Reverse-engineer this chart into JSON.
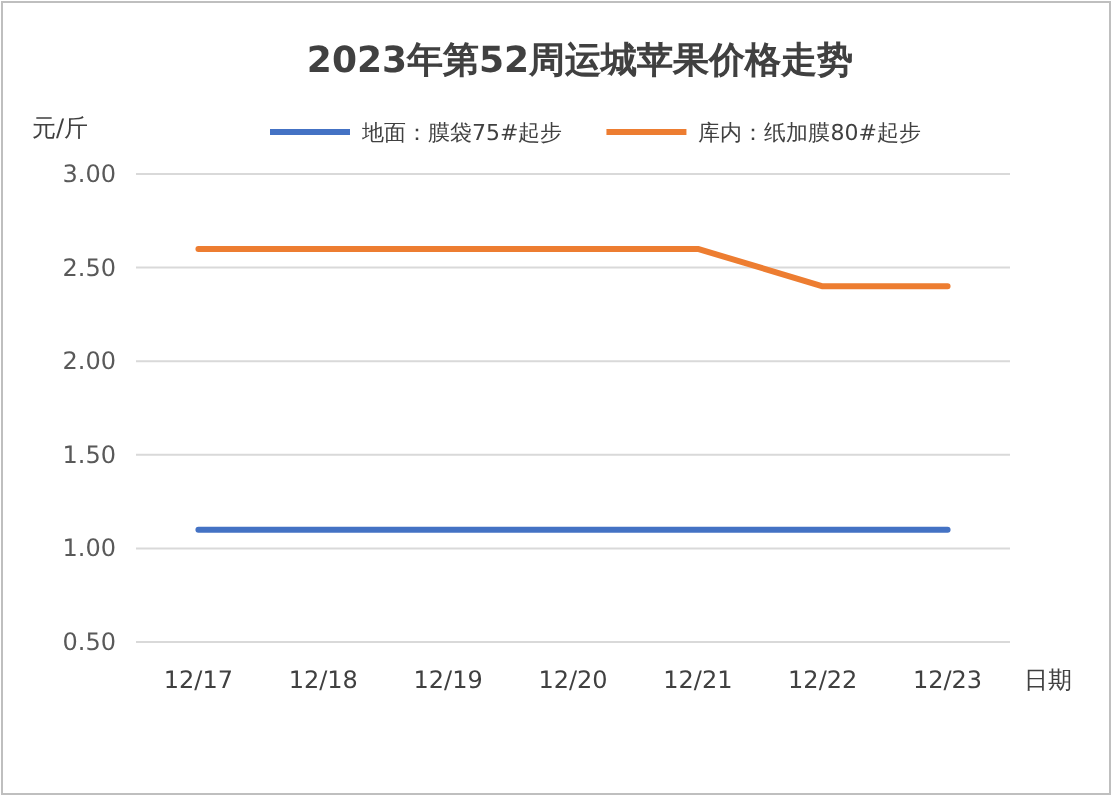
{
  "chart_data": {
    "type": "line",
    "title": "2023年第52周运城苹果价格走势",
    "ylabel": "元/斤",
    "xlabel": "日期",
    "categories": [
      "12/17",
      "12/18",
      "12/19",
      "12/20",
      "12/21",
      "12/22",
      "12/23"
    ],
    "series": [
      {
        "name": "地面：膜袋75#起步",
        "color": "#4472c4",
        "values": [
          1.1,
          1.1,
          1.1,
          1.1,
          1.1,
          1.1,
          1.1
        ]
      },
      {
        "name": "库内：纸加膜80#起步",
        "color": "#ed7d31",
        "values": [
          2.6,
          2.6,
          2.6,
          2.6,
          2.6,
          2.4,
          2.4
        ]
      }
    ],
    "ylim": [
      0.5,
      3.0
    ],
    "yticks": [
      {
        "value": 0.5,
        "label": "0.50"
      },
      {
        "value": 1.0,
        "label": "1.00"
      },
      {
        "value": 1.5,
        "label": "1.50"
      },
      {
        "value": 2.0,
        "label": "2.00"
      },
      {
        "value": 2.5,
        "label": "2.50"
      },
      {
        "value": 3.0,
        "label": "3.00"
      }
    ],
    "grid": "y",
    "legend": "top",
    "marker": "none",
    "line_style": "solid"
  }
}
